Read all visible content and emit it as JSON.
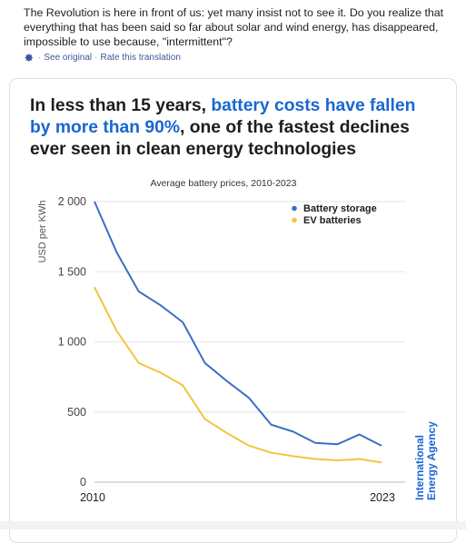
{
  "post": {
    "text": "The Revolution is here in front of us: yet many insist not to see it. Do you realize that everything that has been said so far about solar and wind energy, has disappeared, impossible to use because, \"intermittent\"?",
    "translation_icon": "gear-icon",
    "see_original": "See original",
    "separator": "·",
    "rate_translation": "Rate this translation"
  },
  "card": {
    "headline_part1": "In less than 15 years, ",
    "headline_highlight": "battery costs have fallen by more than 90%",
    "headline_part2": ", one of the fastest declines ever seen in clean energy technologies",
    "highlight_color": "#1a66d2",
    "source_logo_line1": "International",
    "source_logo_line2": "Energy Agency"
  },
  "chart_data": {
    "type": "line",
    "title": "Average battery prices, 2010-2023",
    "xlabel": "",
    "ylabel": "USD per KWh",
    "x_tick_labels": [
      "2010",
      "2023"
    ],
    "y_ticks": [
      0,
      500,
      1000,
      1500,
      2000
    ],
    "y_tick_labels": [
      "0",
      "500",
      "1 000",
      "1 500",
      "2 000"
    ],
    "xlim": [
      2010,
      2023
    ],
    "ylim": [
      0,
      2000
    ],
    "grid": true,
    "legend_position": "top-right",
    "x": [
      2010,
      2011,
      2012,
      2013,
      2014,
      2015,
      2016,
      2017,
      2018,
      2019,
      2020,
      2021,
      2022,
      2023
    ],
    "series": [
      {
        "name": "Battery storage",
        "color": "#3a6fc4",
        "values": [
          2000,
          1640,
          1360,
          1260,
          1140,
          850,
          720,
          600,
          410,
          360,
          280,
          270,
          340,
          260
        ]
      },
      {
        "name": "EV batteries",
        "color": "#f5c342",
        "values": [
          1390,
          1080,
          850,
          780,
          690,
          450,
          350,
          260,
          210,
          185,
          165,
          155,
          165,
          140
        ]
      }
    ]
  }
}
